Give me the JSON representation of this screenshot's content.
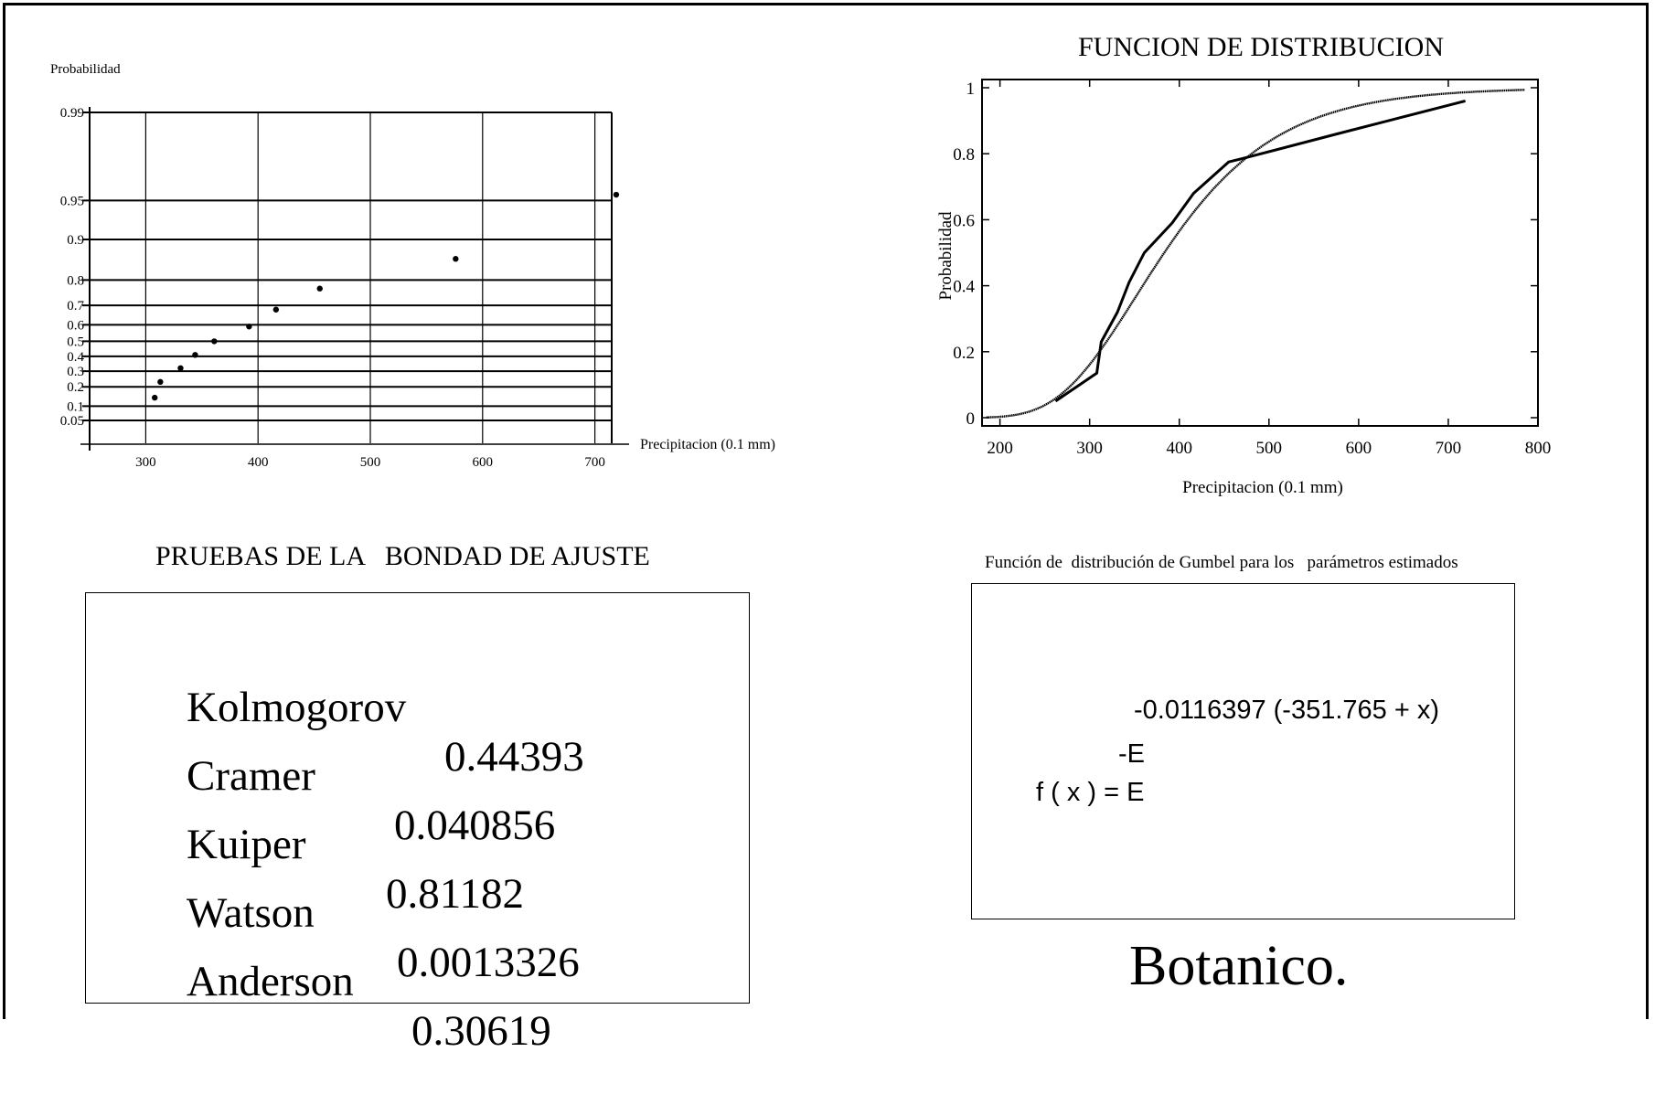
{
  "chart_data": [
    {
      "type": "scatter",
      "scale": "probability (Gumbel paper)",
      "ylabel": "Probabilidad",
      "xlabel": "Precipitacion (0.1 mm)",
      "xlim": [
        250,
        720
      ],
      "x_ticks": [
        "300",
        "400",
        "500",
        "600",
        "700"
      ],
      "y_ticks": [
        "0.99",
        "0.95",
        "0.9",
        "0.8",
        "0.7",
        "0.6",
        "0.5",
        "0.4",
        "0.3",
        "0.2",
        "0.1",
        "0.05"
      ],
      "grid": true,
      "points": [
        {
          "x": 308,
          "y": 0.14
        },
        {
          "x": 313,
          "y": 0.23
        },
        {
          "x": 331,
          "y": 0.32
        },
        {
          "x": 344,
          "y": 0.41
        },
        {
          "x": 361,
          "y": 0.5
        },
        {
          "x": 392,
          "y": 0.59
        },
        {
          "x": 416,
          "y": 0.68
        },
        {
          "x": 455,
          "y": 0.77
        },
        {
          "x": 576,
          "y": 0.86
        },
        {
          "x": 719,
          "y": 0.955
        }
      ]
    },
    {
      "type": "line",
      "title": "FUNCION DE DISTRIBUCION",
      "ylabel": "Probabilidad",
      "xlabel": "Precipitacion (0.1 mm)",
      "xlim": [
        180,
        800
      ],
      "ylim": [
        0,
        1
      ],
      "x_ticks": [
        "200",
        "300",
        "400",
        "500",
        "600",
        "700",
        "800"
      ],
      "y_ticks": [
        "0",
        "0.2",
        "0.4",
        "0.6",
        "0.8",
        "1"
      ],
      "series": [
        {
          "points": [
            [
              262,
              0.05
            ],
            [
              308,
              0.135
            ],
            [
              313,
              0.23
            ],
            [
              331,
              0.32
            ],
            [
              344,
              0.41
            ],
            [
              361,
              0.5
            ],
            [
              392,
              0.59
            ],
            [
              416,
              0.68
            ],
            [
              455,
              0.775
            ],
            [
              470,
              0.785
            ],
            [
              576,
              0.86
            ],
            [
              719,
              0.96
            ]
          ]
        },
        {
          "function": "gumbel",
          "params": {
            "alpha": 0.0116397,
            "u": 351.765
          },
          "range": [
            185,
            785
          ]
        }
      ]
    }
  ],
  "stats": {
    "title": "PRUEBAS DE LA   BONDAD DE AJUSTE",
    "rows": [
      {
        "name": "Kolmogorov",
        "value": "0.44393"
      },
      {
        "name": "Cramer",
        "value": "0.040856"
      },
      {
        "name": "Kuiper",
        "value": "0.81182"
      },
      {
        "name": "Watson",
        "value": "0.0013326"
      },
      {
        "name": "Anderson",
        "value": "0.30619"
      }
    ]
  },
  "formula": {
    "title": "Función de  distribución de Gumbel para los   parámetros estimados",
    "exponent": "-0.0116397 (-351.765 + x)",
    "neg_e": "-E",
    "lhs": "f ( x ) = E"
  },
  "station": "Botanico."
}
